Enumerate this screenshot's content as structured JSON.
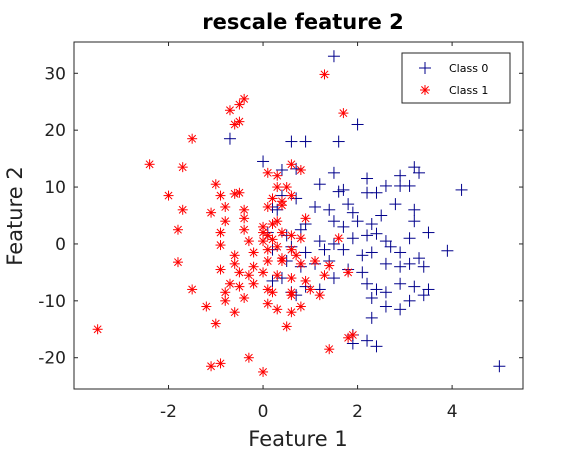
{
  "chart_data": {
    "type": "scatter",
    "title": "rescale feature 2",
    "xlabel": "Feature 1",
    "ylabel": "Feature 2",
    "xlim": [
      -4,
      5.5
    ],
    "ylim": [
      -25.5,
      35.5
    ],
    "xticks": [
      -2,
      0,
      2,
      4
    ],
    "yticks": [
      -20,
      -10,
      0,
      10,
      20,
      30
    ],
    "grid": false,
    "legend_position": "top-right",
    "series": [
      {
        "name": "Class 0",
        "marker": "plus",
        "color": "#00008b",
        "points": [
          [
            1.5,
            33
          ],
          [
            2,
            21
          ],
          [
            1.6,
            18
          ],
          [
            0.6,
            18
          ],
          [
            0.9,
            18
          ],
          [
            -0.7,
            18.5
          ],
          [
            0,
            14.5
          ],
          [
            0.4,
            13
          ],
          [
            0.7,
            13.2
          ],
          [
            1.5,
            12.5
          ],
          [
            2.2,
            11.5
          ],
          [
            2.9,
            12
          ],
          [
            3.2,
            13.5
          ],
          [
            3.3,
            12.5
          ],
          [
            4.2,
            9.5
          ],
          [
            1.2,
            10.5
          ],
          [
            1.7,
            9.5
          ],
          [
            1.6,
            9.2
          ],
          [
            2.6,
            10.2
          ],
          [
            2.9,
            10.2
          ],
          [
            3.1,
            10.2
          ],
          [
            0.4,
            8.5
          ],
          [
            0.2,
            6.5
          ],
          [
            0.3,
            6
          ],
          [
            0.7,
            8
          ],
          [
            1.1,
            6.5
          ],
          [
            1.4,
            6
          ],
          [
            1.8,
            7
          ],
          [
            2.2,
            9
          ],
          [
            2.4,
            9
          ],
          [
            1.9,
            5.5
          ],
          [
            2,
            4
          ],
          [
            2.5,
            5
          ],
          [
            2.8,
            7
          ],
          [
            3.2,
            6
          ],
          [
            0.9,
            3.5
          ],
          [
            1.5,
            4
          ],
          [
            1.7,
            3
          ],
          [
            2.3,
            3.5
          ],
          [
            3.2,
            4
          ],
          [
            0.1,
            2
          ],
          [
            0.5,
            1.5
          ],
          [
            0.8,
            2.5
          ],
          [
            1.2,
            0.5
          ],
          [
            1.5,
            0
          ],
          [
            1.9,
            1
          ],
          [
            2.2,
            1.5
          ],
          [
            2.4,
            1.8
          ],
          [
            2.6,
            0.5
          ],
          [
            3.1,
            1
          ],
          [
            3.5,
            2
          ],
          [
            0.2,
            -1
          ],
          [
            0.6,
            -0.5
          ],
          [
            0.9,
            -1.5
          ],
          [
            1.3,
            -1
          ],
          [
            1.7,
            -1
          ],
          [
            2.1,
            -2
          ],
          [
            2.3,
            -1.5
          ],
          [
            2.7,
            -0.5
          ],
          [
            2.9,
            -1.5
          ],
          [
            3.3,
            -2.5
          ],
          [
            3.9,
            -1.2
          ],
          [
            0.5,
            -3
          ],
          [
            0.8,
            -4
          ],
          [
            1.1,
            -3.5
          ],
          [
            1.4,
            -3
          ],
          [
            1.8,
            -4.5
          ],
          [
            2.1,
            -5
          ],
          [
            2.6,
            -3.5
          ],
          [
            2.9,
            -4
          ],
          [
            3.1,
            -3.5
          ],
          [
            3.4,
            -4
          ],
          [
            0.2,
            -6.5
          ],
          [
            0.4,
            -6
          ],
          [
            0.6,
            -8.5
          ],
          [
            0.9,
            -7.5
          ],
          [
            1.2,
            -8
          ],
          [
            1.5,
            -6
          ],
          [
            2.2,
            -7
          ],
          [
            2.4,
            -8
          ],
          [
            2.6,
            -8.5
          ],
          [
            2.9,
            -7
          ],
          [
            3.2,
            -7.5
          ],
          [
            3.4,
            -9
          ],
          [
            3.5,
            -8
          ],
          [
            0.7,
            -9
          ],
          [
            2.3,
            -9.5
          ],
          [
            2.6,
            -11
          ],
          [
            2.9,
            -11.5
          ],
          [
            3.1,
            -10
          ],
          [
            2.3,
            -13
          ],
          [
            1.9,
            -16
          ],
          [
            1.9,
            -17.5
          ],
          [
            2.2,
            -17
          ],
          [
            2.4,
            -18
          ],
          [
            5,
            -21.5
          ]
        ]
      },
      {
        "name": "Class 1",
        "marker": "asterisk",
        "color": "#ff0000",
        "points": [
          [
            1.3,
            29.8
          ],
          [
            -0.4,
            25.5
          ],
          [
            -0.5,
            24.5
          ],
          [
            -0.7,
            23.5
          ],
          [
            1.7,
            23
          ],
          [
            -0.5,
            21.5
          ],
          [
            -0.6,
            21
          ],
          [
            -1.5,
            18.5
          ],
          [
            -2.4,
            14
          ],
          [
            -1.7,
            13.5
          ],
          [
            0.6,
            14
          ],
          [
            0.8,
            13
          ],
          [
            0.1,
            12.5
          ],
          [
            0.3,
            12
          ],
          [
            -1,
            10.5
          ],
          [
            -0.9,
            8.5
          ],
          [
            -0.5,
            9
          ],
          [
            -0.6,
            8.8
          ],
          [
            0.3,
            10
          ],
          [
            0.5,
            10
          ],
          [
            -2,
            8.5
          ],
          [
            -1.7,
            6
          ],
          [
            -0.8,
            6.5
          ],
          [
            -0.4,
            6
          ],
          [
            0.2,
            8
          ],
          [
            0.4,
            7.5
          ],
          [
            0.6,
            8.5
          ],
          [
            0.1,
            6.5
          ],
          [
            0.4,
            6.8
          ],
          [
            -1.1,
            5.5
          ],
          [
            -0.8,
            4
          ],
          [
            -0.4,
            4.5
          ],
          [
            0,
            3
          ],
          [
            0.2,
            3.5
          ],
          [
            0.3,
            4
          ],
          [
            0.9,
            4.5
          ],
          [
            -1.8,
            2.5
          ],
          [
            -0.9,
            2
          ],
          [
            -0.4,
            2.5
          ],
          [
            0,
            2
          ],
          [
            0.1,
            1.5
          ],
          [
            0.4,
            2
          ],
          [
            0.6,
            1.5
          ],
          [
            0.8,
            1
          ],
          [
            1.6,
            1
          ],
          [
            -0.9,
            -0.2
          ],
          [
            -0.3,
            0.5
          ],
          [
            0,
            0.5
          ],
          [
            0.2,
            0.8
          ],
          [
            0.3,
            -0.5
          ],
          [
            0.6,
            -1
          ],
          [
            -0.6,
            -2
          ],
          [
            -0.2,
            -1.5
          ],
          [
            0.1,
            -1
          ],
          [
            0.4,
            -2.5
          ],
          [
            0.7,
            -2
          ],
          [
            -0.6,
            -3.5
          ],
          [
            -0.2,
            -4
          ],
          [
            0.1,
            -3
          ],
          [
            0.4,
            -3
          ],
          [
            0.8,
            -3.5
          ],
          [
            1.1,
            -3
          ],
          [
            1.4,
            -3.8
          ],
          [
            -1.8,
            -3.2
          ],
          [
            -0.9,
            -4.5
          ],
          [
            -0.5,
            -5
          ],
          [
            -0.3,
            -5.5
          ],
          [
            0,
            -5
          ],
          [
            0.3,
            -5.5
          ],
          [
            0.6,
            -6
          ],
          [
            0.9,
            -6.5
          ],
          [
            1.3,
            -5.5
          ],
          [
            1.8,
            -5
          ],
          [
            -0.7,
            -7
          ],
          [
            -0.5,
            -7.5
          ],
          [
            -0.2,
            -7
          ],
          [
            0.1,
            -8
          ],
          [
            0.6,
            -8.5
          ],
          [
            1,
            -8
          ],
          [
            1.2,
            -9
          ],
          [
            -1.5,
            -8
          ],
          [
            -0.8,
            -8.5
          ],
          [
            -0.4,
            -9.5
          ],
          [
            0.2,
            -8.5
          ],
          [
            0.6,
            -9
          ],
          [
            -1.2,
            -11
          ],
          [
            -0.8,
            -10
          ],
          [
            -0.6,
            -12
          ],
          [
            0.1,
            -10.5
          ],
          [
            0.3,
            -11.5
          ],
          [
            0.6,
            -12
          ],
          [
            -1,
            -14
          ],
          [
            0.5,
            -14.5
          ],
          [
            -3.5,
            -15
          ],
          [
            1.4,
            -18.5
          ],
          [
            1.8,
            -16.5
          ],
          [
            1.9,
            -16
          ],
          [
            -0.3,
            -20
          ],
          [
            -0.9,
            -21
          ],
          [
            -1.1,
            -21.5
          ],
          [
            0,
            -22.5
          ],
          [
            0.8,
            -11
          ]
        ]
      }
    ]
  }
}
